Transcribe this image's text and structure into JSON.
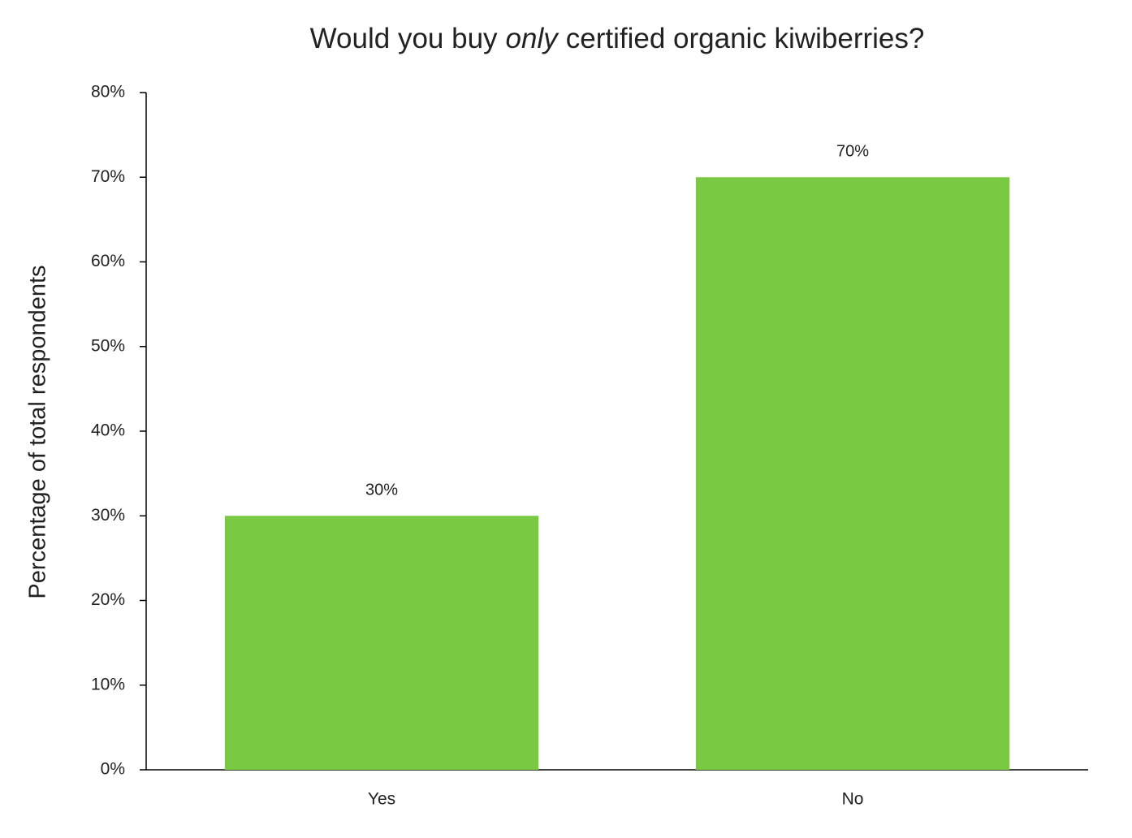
{
  "chart_data": {
    "type": "bar",
    "title": [
      "Would you buy",
      "only",
      "certified organic kiwiberries?"
    ],
    "title_italic": [
      false,
      true,
      false
    ],
    "y_label": "Percentage of total respondents",
    "categories": [
      "Yes",
      "No"
    ],
    "values": [
      30,
      70
    ],
    "value_labels": [
      "30%",
      "70%"
    ],
    "color": "#7ac943",
    "ylim": [
      0,
      80
    ],
    "yticks": [
      {
        "value": 0,
        "label": "0%"
      },
      {
        "value": 10,
        "label": "10%"
      },
      {
        "value": 20,
        "label": "20%"
      },
      {
        "value": 30,
        "label": "30%"
      },
      {
        "value": 40,
        "label": "40%"
      },
      {
        "value": 50,
        "label": "50%"
      },
      {
        "value": 60,
        "label": "60%"
      },
      {
        "value": 70,
        "label": "70%"
      },
      {
        "value": 80,
        "label": "80%"
      }
    ],
    "grid": false
  }
}
